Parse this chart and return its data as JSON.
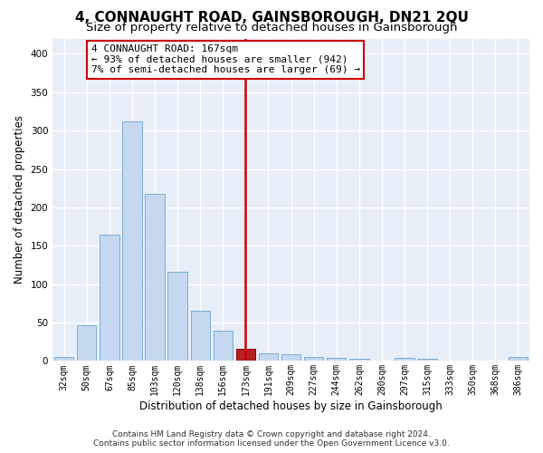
{
  "title": "4, CONNAUGHT ROAD, GAINSBOROUGH, DN21 2QU",
  "subtitle": "Size of property relative to detached houses in Gainsborough",
  "xlabel": "Distribution of detached houses by size in Gainsborough",
  "ylabel": "Number of detached properties",
  "bar_labels": [
    "32sqm",
    "50sqm",
    "67sqm",
    "85sqm",
    "103sqm",
    "120sqm",
    "138sqm",
    "156sqm",
    "173sqm",
    "191sqm",
    "209sqm",
    "227sqm",
    "244sqm",
    "262sqm",
    "280sqm",
    "297sqm",
    "315sqm",
    "333sqm",
    "350sqm",
    "368sqm",
    "386sqm"
  ],
  "bar_values": [
    5,
    47,
    165,
    312,
    218,
    116,
    65,
    39,
    16,
    10,
    9,
    5,
    4,
    3,
    0,
    4,
    3,
    0,
    0,
    0,
    5
  ],
  "bar_color": "#c5d8f0",
  "bar_edge_color": "#7aaed4",
  "highlight_bar_index": 8,
  "highlight_bar_color": "#b22222",
  "highlight_bar_edge_color": "#8b0000",
  "vline_color": "#cc0000",
  "annotation_title": "4 CONNAUGHT ROAD: 167sqm",
  "annotation_line1": "← 93% of detached houses are smaller (942)",
  "annotation_line2": "7% of semi-detached houses are larger (69) →",
  "annotation_box_facecolor": "#ffffff",
  "annotation_box_edgecolor": "#cc0000",
  "ylim": [
    0,
    420
  ],
  "yticks": [
    0,
    50,
    100,
    150,
    200,
    250,
    300,
    350,
    400
  ],
  "footer1": "Contains HM Land Registry data © Crown copyright and database right 2024.",
  "footer2": "Contains public sector information licensed under the Open Government Licence v3.0.",
  "bg_color": "#e8eef8",
  "fig_bg_color": "#ffffff",
  "title_fontsize": 11,
  "subtitle_fontsize": 9.5,
  "tick_fontsize": 7,
  "ylabel_fontsize": 8.5,
  "xlabel_fontsize": 8.5,
  "annotation_fontsize": 8,
  "footer_fontsize": 6.5
}
